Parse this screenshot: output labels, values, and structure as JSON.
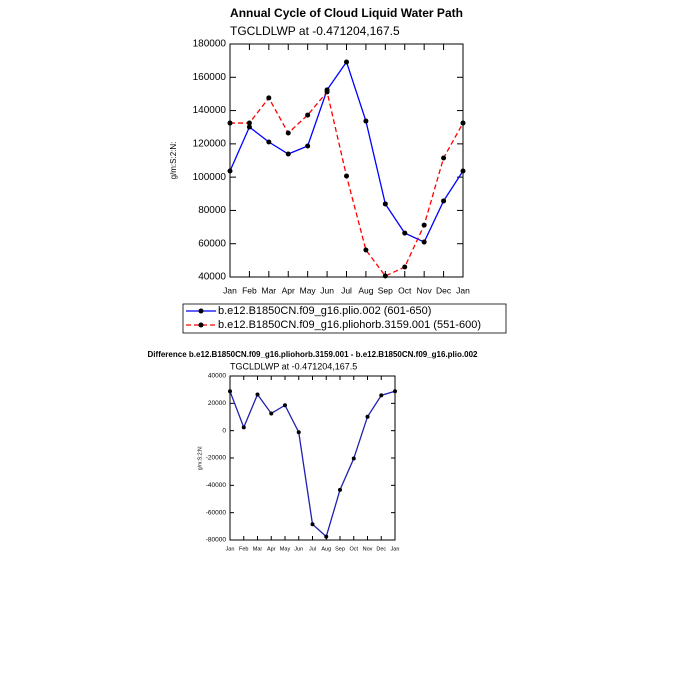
{
  "chart_data": [
    {
      "type": "line",
      "title": "Annual Cycle of Cloud Liquid Water Path",
      "subtitle": "TGCLDLWP at -0.471204,167.5",
      "y_label": "g/m:S:2:N:",
      "categories": [
        "Jan",
        "Feb",
        "Mar",
        "Apr",
        "May",
        "Jun",
        "Jul",
        "Aug",
        "Sep",
        "Oct",
        "Nov",
        "Dec",
        "Jan"
      ],
      "series": [
        {
          "name": "b.e12.B1850CN.f09_g16.plio.002 (601-650)",
          "color": "#0000ff",
          "dash": "solid",
          "values": [
            103700,
            130100,
            121100,
            113900,
            118700,
            152400,
            169200,
            133700,
            83900,
            66400,
            61000,
            85700,
            103700
          ]
        },
        {
          "name": "b.e12.B1850CN.f09_g16.pliohorb.3159.001 (551-600)",
          "color": "#ff0000",
          "dash": "dashed",
          "values": [
            132500,
            132500,
            147600,
            126500,
            137300,
            151200,
            100700,
            56200,
            40600,
            46000,
            71200,
            111500,
            132500
          ]
        }
      ],
      "ylim": [
        40000,
        180000
      ],
      "yticks": [
        40000,
        60000,
        80000,
        100000,
        120000,
        140000,
        160000,
        180000
      ]
    },
    {
      "type": "line",
      "title": "Difference b.e12.B1850CN.f09_g16.pliohorb.3159.001 - b.e12.B1850CN.f09_g16.plio.002",
      "subtitle": "TGCLDLWP at -0.471204,167.5",
      "y_label": "g/m:S:2:N:",
      "categories": [
        "Jan",
        "Feb",
        "Mar",
        "Apr",
        "May",
        "Jun",
        "Jul",
        "Aug",
        "Sep",
        "Oct",
        "Nov",
        "Dec",
        "Jan"
      ],
      "values": [
        28800,
        2400,
        26500,
        12600,
        18600,
        -1200,
        -68500,
        -77500,
        -43300,
        -20400,
        10200,
        25800,
        28800
      ],
      "color": "#2020b0",
      "ylim": [
        -80000,
        40000
      ],
      "yticks": [
        -80000,
        -60000,
        -40000,
        -20000,
        0,
        20000,
        40000
      ]
    }
  ]
}
